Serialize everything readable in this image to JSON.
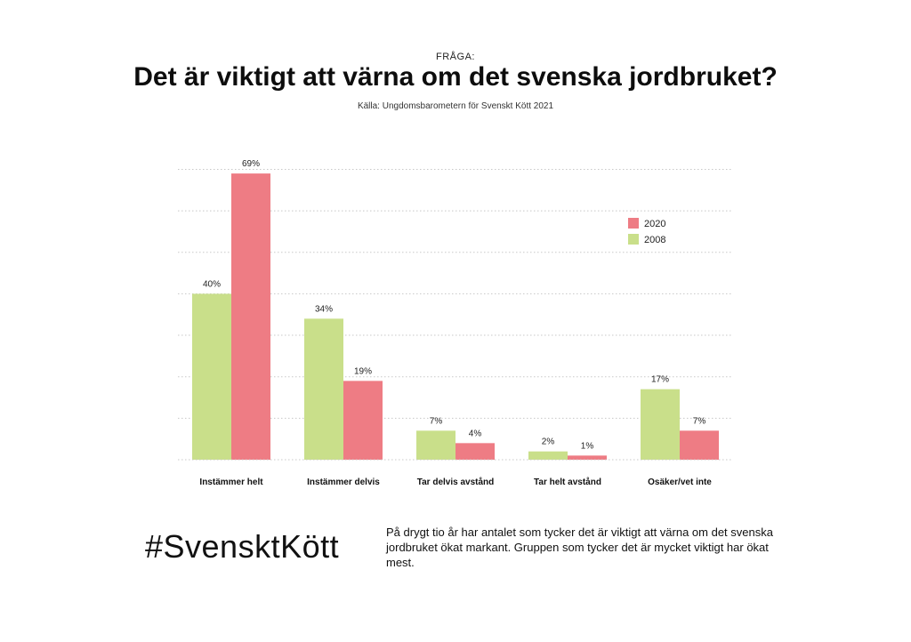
{
  "header": {
    "eyebrow": "FRÅGA:",
    "title": "Det är viktigt att värna om det svenska jordbruket?",
    "source": "Källa: Ungdomsbarometern för Svenskt Kött 2021"
  },
  "footer": {
    "hashtag": "#SvensktKött",
    "note": "På drygt tio år har antalet som tycker det är viktigt att värna om det svenska jordbruket ökat markant. Gruppen som tycker det är mycket viktigt har ökat mest."
  },
  "chart_data": {
    "type": "bar",
    "categories": [
      "Instämmer helt",
      "Instämmer delvis",
      "Tar delvis avstånd",
      "Tar helt avstånd",
      "Osäker/vet inte"
    ],
    "series": [
      {
        "name": "2008",
        "values": [
          40,
          34,
          7,
          2,
          17
        ],
        "labels": [
          "40%",
          "34%",
          "7%",
          "2%",
          "17%"
        ],
        "color": "#c9df8a"
      },
      {
        "name": "2020",
        "values": [
          69,
          19,
          4,
          1,
          7
        ],
        "labels": [
          "69%",
          "19%",
          "4%",
          "1%",
          "7%"
        ],
        "color": "#ee7c84"
      }
    ],
    "legend_order": [
      "2020",
      "2008"
    ],
    "legend_position": "top-right",
    "ylim": [
      0,
      70
    ],
    "grid": true,
    "title": "",
    "xlabel": "",
    "ylabel": ""
  }
}
